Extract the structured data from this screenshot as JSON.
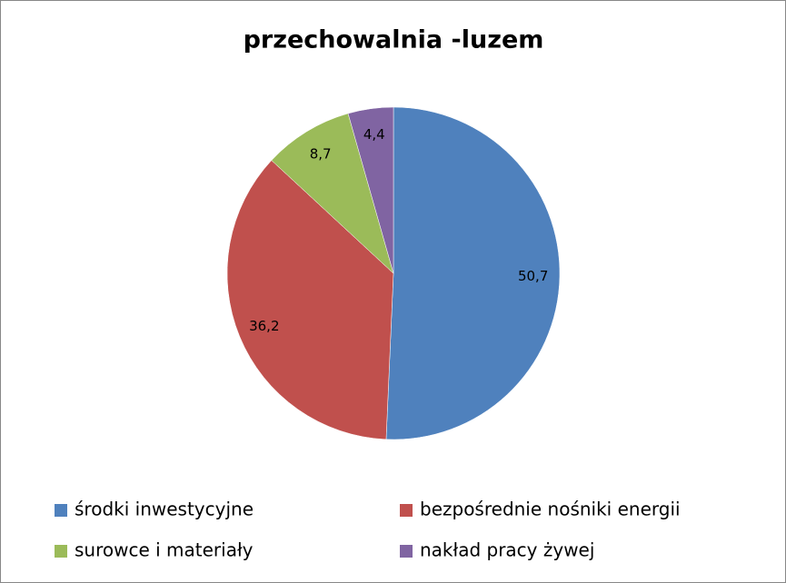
{
  "chart_data": {
    "type": "pie",
    "title": "przechowalnia -luzem",
    "categories": [
      "środki inwestycyjne",
      "bezpośrednie nośniki energii",
      "surowce i materiały",
      "nakład pracy żywej"
    ],
    "values": [
      50.7,
      36.2,
      8.7,
      4.4
    ],
    "value_labels": [
      "50,7",
      "36,2",
      "8,7",
      "4,4"
    ],
    "colors": [
      "#4f81bd",
      "#c0504d",
      "#9bbb59",
      "#8064a2"
    ]
  }
}
